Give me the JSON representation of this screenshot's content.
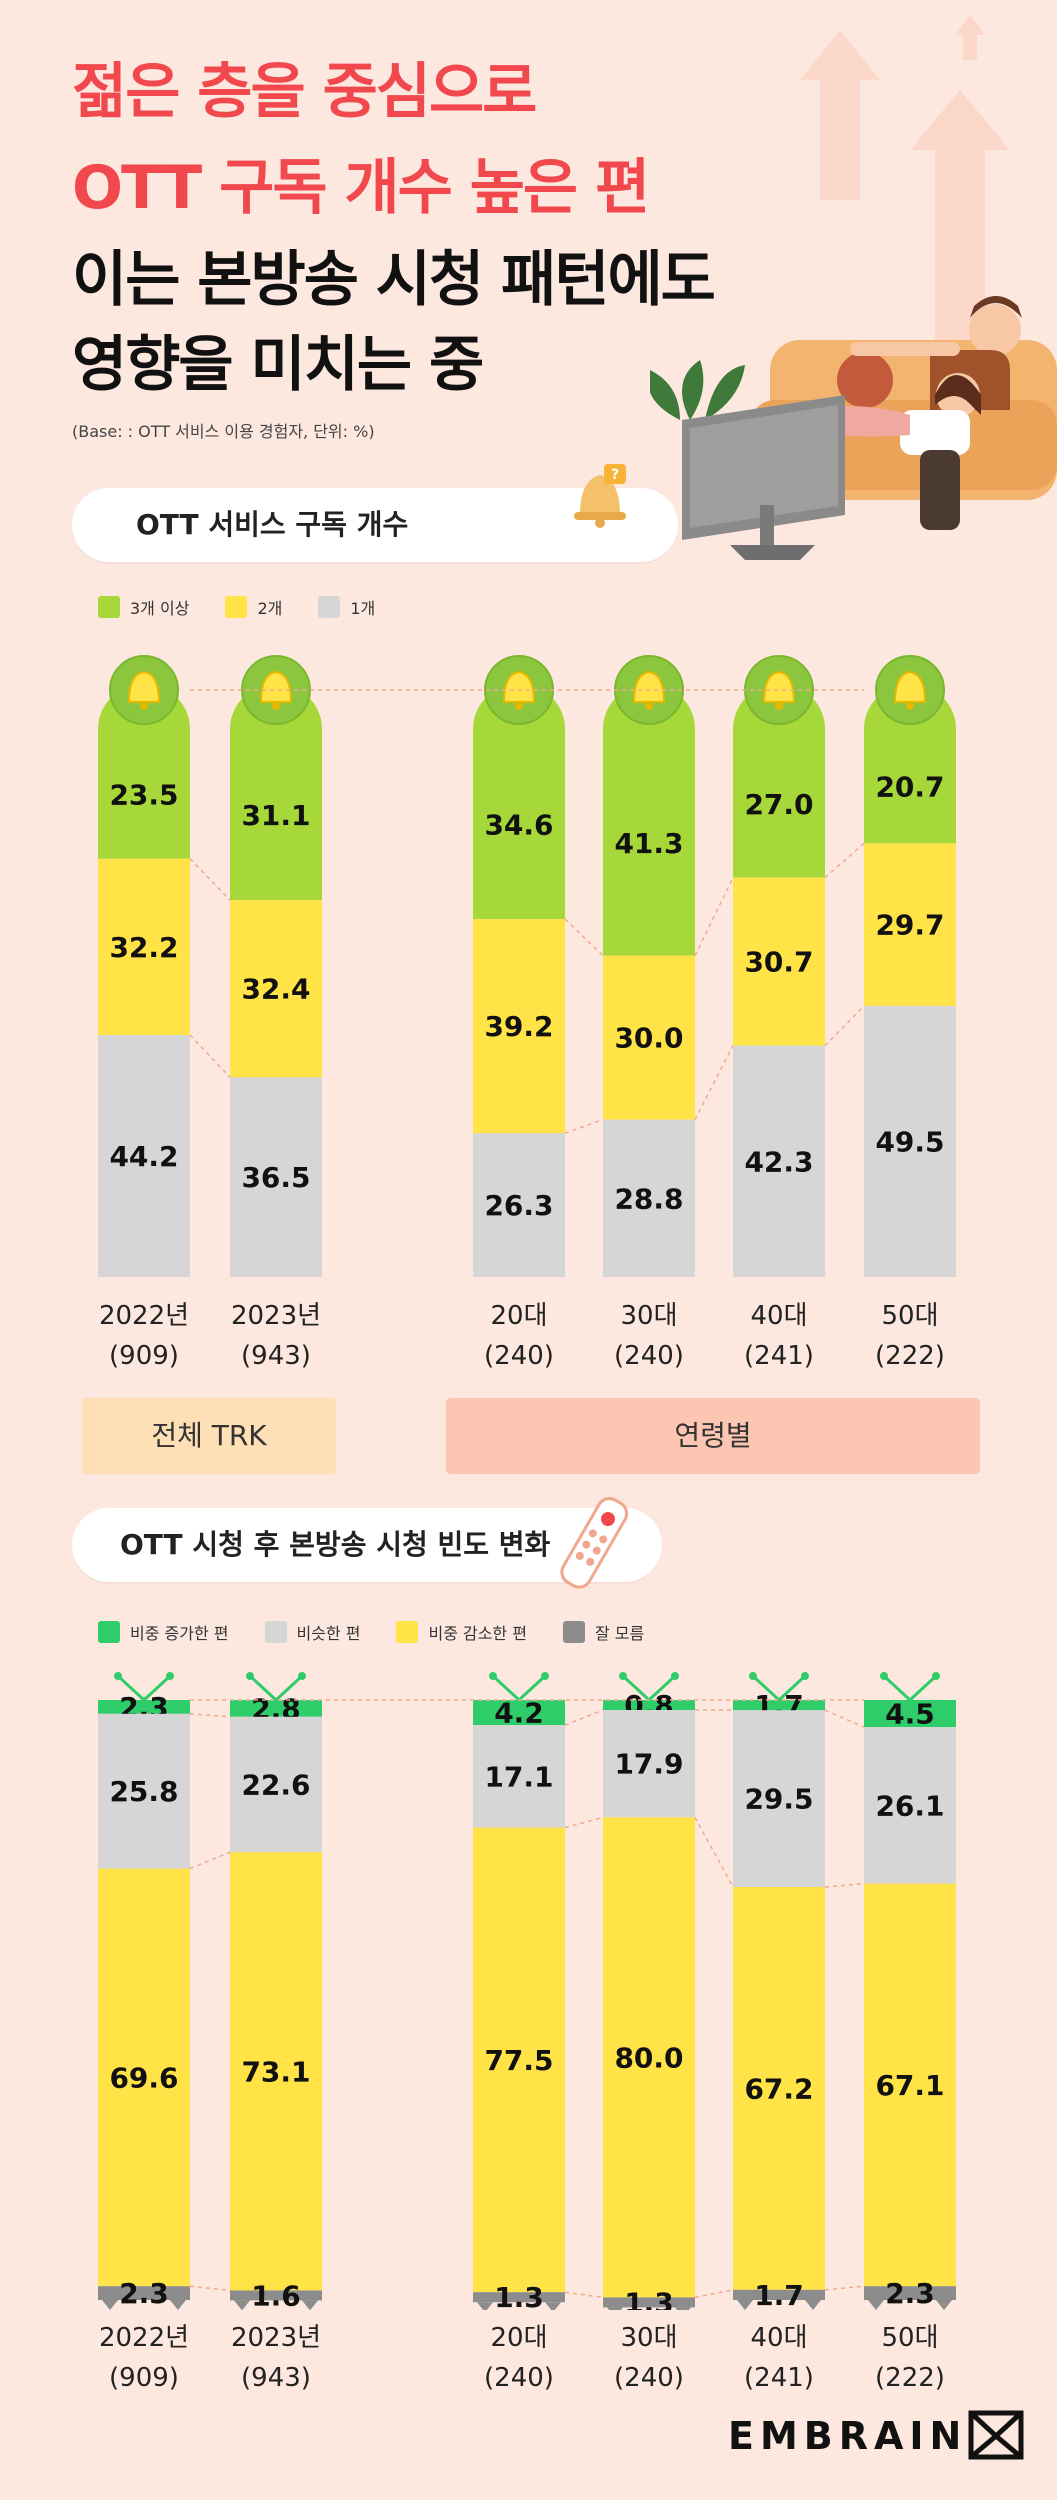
{
  "header": {
    "title_line1": "젊은 층을 중심으로",
    "title_line2": "OTT 구독 개수 높은 편",
    "title_line3": "이는 본방송 시청 패턴에도",
    "title_line4": "영향을 미치는 중",
    "base_note": "(Base: : OTT 서비스 이용 경험자, 단위: %)"
  },
  "colors": {
    "background": "#fde8e0",
    "title_red": "#f1484e",
    "green": "#a5d838",
    "yellow": "#ffe347",
    "gray": "#d6d6d6",
    "bright_green": "#2fcc6a",
    "dark_gray": "#8c8c8c",
    "group_total_bg": "#ffe0b6",
    "group_age_bg": "#fdc6b3"
  },
  "section1": {
    "title": "OTT 서비스 구독 개수",
    "icon": "bell-icon",
    "legend": [
      "3개 이상",
      "2개",
      "1개"
    ],
    "groups": {
      "total": "전체 TRK",
      "age": "연령별"
    }
  },
  "section2": {
    "title": "OTT 시청 후 본방송 시청 빈도 변화",
    "icon": "remote-control-icon",
    "legend": [
      "비중 증가한 편",
      "비슷한 편",
      "비중 감소한 편",
      "잘 모름"
    ]
  },
  "categories": [
    {
      "line1": "2022년",
      "line2": "(909)"
    },
    {
      "line1": "2023년",
      "line2": "(943)"
    },
    {
      "line1": "20대",
      "line2": "(240)"
    },
    {
      "line1": "30대",
      "line2": "(240)"
    },
    {
      "line1": "40대",
      "line2": "(241)"
    },
    {
      "line1": "50대",
      "line2": "(222)"
    }
  ],
  "chart_data": [
    {
      "type": "bar",
      "stacked": true,
      "title": "OTT 서비스 구독 개수",
      "unit": "%",
      "categories": [
        "2022년 (909)",
        "2023년 (943)",
        "20대 (240)",
        "30대 (240)",
        "40대 (241)",
        "50대 (222)"
      ],
      "series": [
        {
          "name": "3개 이상",
          "values": [
            23.5,
            31.1,
            34.6,
            41.3,
            27.0,
            20.7
          ]
        },
        {
          "name": "2개",
          "values": [
            32.2,
            32.4,
            39.2,
            30.0,
            30.7,
            29.7
          ]
        },
        {
          "name": "1개",
          "values": [
            44.2,
            36.5,
            26.3,
            28.8,
            42.3,
            49.5
          ]
        }
      ],
      "legend_position": "top-left",
      "grid": false
    },
    {
      "type": "bar",
      "stacked": true,
      "title": "OTT 시청 후 본방송 시청 빈도 변화",
      "unit": "%",
      "categories": [
        "2022년 (909)",
        "2023년 (943)",
        "20대 (240)",
        "30대 (240)",
        "40대 (241)",
        "50대 (222)"
      ],
      "series": [
        {
          "name": "비중 증가한 편",
          "values": [
            2.3,
            2.8,
            4.2,
            0.8,
            1.7,
            4.5
          ]
        },
        {
          "name": "비슷한 편",
          "values": [
            25.8,
            22.6,
            17.1,
            17.9,
            29.5,
            26.1
          ]
        },
        {
          "name": "비중 감소한 편",
          "values": [
            69.6,
            73.1,
            77.5,
            80.0,
            67.2,
            67.1
          ]
        },
        {
          "name": "잘 모름",
          "values": [
            2.3,
            1.6,
            1.3,
            1.3,
            1.7,
            2.3
          ]
        }
      ],
      "legend_position": "top-left",
      "grid": false
    }
  ],
  "brand": {
    "name": "EMBRAIN"
  }
}
